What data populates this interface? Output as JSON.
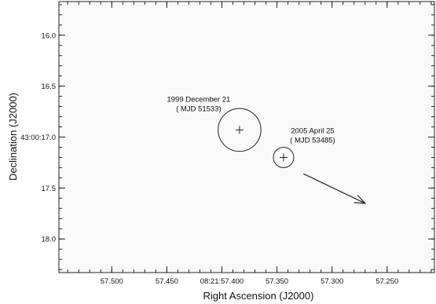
{
  "chart_data": {
    "type": "scatter",
    "title": "",
    "xlabel": "Right Ascension (J2000)",
    "ylabel": "Declination (J2000)",
    "x_reversed": true,
    "xlim": [
      57.548,
      57.207
    ],
    "ylim": [
      15.67,
      18.33
    ],
    "x_ticks": [
      {
        "value": 57.5,
        "label": "57.500"
      },
      {
        "value": 57.45,
        "label": "57.450"
      },
      {
        "value": 57.4,
        "label": "08:21:57.400"
      },
      {
        "value": 57.35,
        "label": "57.350"
      },
      {
        "value": 57.3,
        "label": "57.300"
      },
      {
        "value": 57.25,
        "label": "57.250"
      }
    ],
    "y_ticks": [
      {
        "value": 16.0,
        "label": "16.0"
      },
      {
        "value": 16.5,
        "label": "16.5"
      },
      {
        "value": 17.0,
        "label": "43:00:17.0"
      },
      {
        "value": 17.5,
        "label": "17.5"
      },
      {
        "value": 18.0,
        "label": "18.0"
      }
    ],
    "minor_x_step": 0.01,
    "minor_y_step": 0.1,
    "grid": false,
    "frame_background": "#f9f9f9",
    "points": [
      {
        "ra": 57.384,
        "dec": 16.93,
        "error_radius_arcsec": 0.21,
        "label_lines": [
          "1999 December 21",
          "( MJD 51533)"
        ]
      },
      {
        "ra": 57.344,
        "dec": 17.2,
        "error_radius_arcsec": 0.1,
        "label_lines": [
          "2005 April 25",
          "( MJD 53485)"
        ]
      }
    ],
    "motion_arrow": {
      "from": {
        "ra": 57.326,
        "dec": 17.36
      },
      "to": {
        "ra": 57.27,
        "dec": 17.65
      }
    }
  }
}
